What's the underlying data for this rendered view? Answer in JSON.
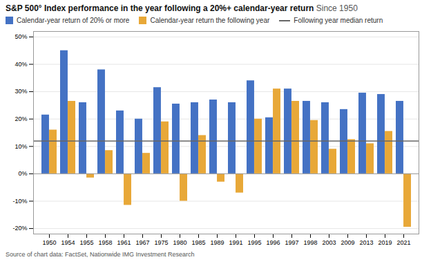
{
  "chart_data": {
    "type": "bar",
    "title": "S&P 500° Index performance in the year following a 20%+ calendar-year return",
    "subtitle": "Since 1950",
    "source": "Source of chart data: FactSet, Nationwide IMG Investment Research",
    "categories": [
      "1950",
      "1954",
      "1955",
      "1958",
      "1961",
      "1967",
      "1975",
      "1980",
      "1985",
      "1989",
      "1991",
      "1995",
      "1996",
      "1997",
      "1998",
      "2003",
      "2009",
      "2013",
      "2019",
      "2021"
    ],
    "series": [
      {
        "name": "Calendar-year return of 20% or more",
        "color": "#4472C4",
        "values": [
          21.5,
          45.0,
          26.0,
          38.0,
          23.0,
          20.0,
          31.5,
          25.5,
          26.0,
          27.0,
          26.0,
          34.0,
          20.5,
          31.0,
          26.5,
          26.0,
          23.5,
          29.5,
          29.0,
          26.5
        ]
      },
      {
        "name": "Calendar-year return the following year",
        "color": "#E8A838",
        "values": [
          16.0,
          26.5,
          -1.5,
          8.5,
          -11.5,
          7.5,
          19.0,
          -10.0,
          14.0,
          -3.0,
          -7.0,
          20.0,
          31.0,
          26.5,
          19.5,
          9.0,
          12.5,
          11.0,
          15.5,
          -19.5
        ]
      }
    ],
    "reference_lines": [
      {
        "name": "Following year median return",
        "value": 12.0,
        "color": "#666666"
      }
    ],
    "ylim": [
      -22,
      52
    ],
    "yticks": [
      {
        "value": -20,
        "label": "-20%"
      },
      {
        "value": -10,
        "label": "-10%"
      },
      {
        "value": 0,
        "label": "0%"
      },
      {
        "value": 10,
        "label": "10%"
      },
      {
        "value": 20,
        "label": "20%"
      },
      {
        "value": 30,
        "label": "30%"
      },
      {
        "value": 40,
        "label": "40%"
      },
      {
        "value": 50,
        "label": "50%"
      }
    ],
    "grid": true,
    "legend": "upper left"
  }
}
